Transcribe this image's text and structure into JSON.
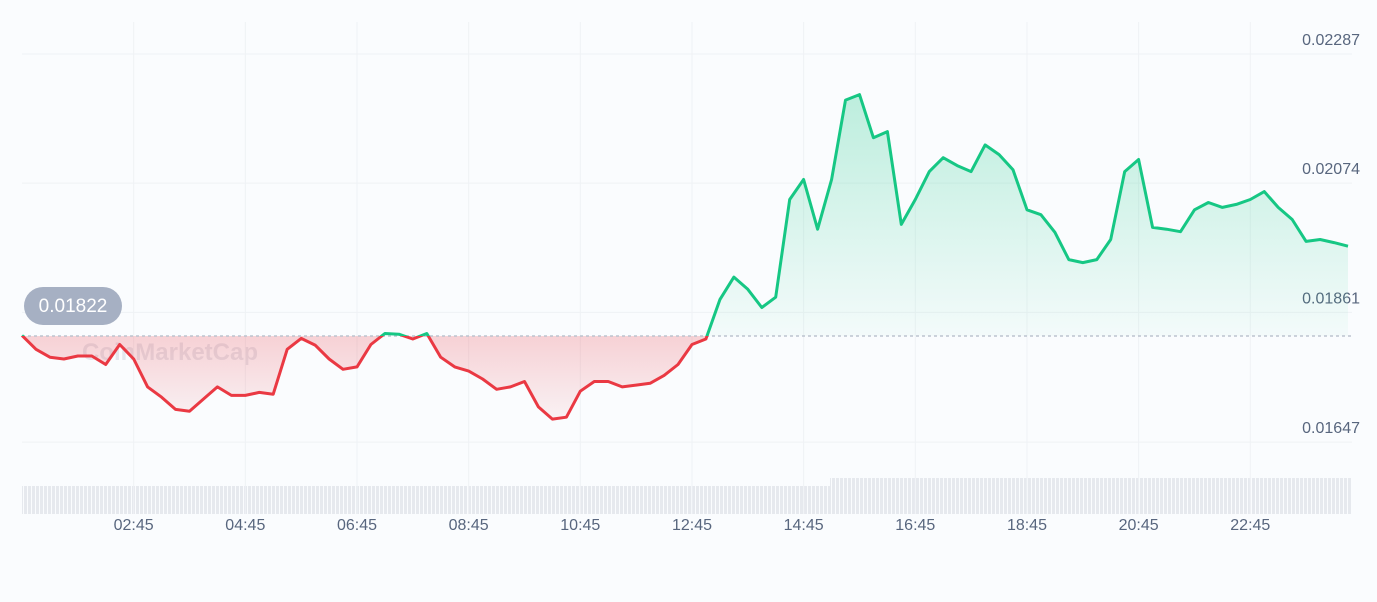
{
  "chart_data": {
    "type": "line",
    "watermark": "CoinMarketCap",
    "baseline": 0.01822,
    "color_up": "#16c784",
    "color_down": "#ea3943",
    "grid": true,
    "ylim": [
      0.01601,
      0.02343
    ],
    "yticks": [
      0.01647,
      0.01861,
      0.02074,
      0.02287
    ],
    "categories": [
      null,
      null,
      null,
      null,
      null,
      null,
      null,
      null,
      "02:45",
      null,
      null,
      null,
      null,
      null,
      null,
      null,
      "04:45",
      null,
      null,
      null,
      null,
      null,
      null,
      null,
      "06:45",
      null,
      null,
      null,
      null,
      null,
      null,
      null,
      "08:45",
      null,
      null,
      null,
      null,
      null,
      null,
      null,
      "10:45",
      null,
      null,
      null,
      null,
      null,
      null,
      null,
      "12:45",
      null,
      null,
      null,
      null,
      null,
      null,
      null,
      "14:45",
      null,
      null,
      null,
      null,
      null,
      null,
      null,
      "16:45",
      null,
      null,
      null,
      null,
      null,
      null,
      null,
      "18:45",
      null,
      null,
      null,
      null,
      null,
      null,
      null,
      "20:45",
      null,
      null,
      null,
      null,
      null,
      null,
      null,
      "22:45",
      null,
      null,
      null,
      null,
      null,
      null,
      null
    ],
    "values": [
      0.01823,
      0.018,
      0.01787,
      0.01784,
      0.01789,
      0.01789,
      0.01775,
      0.01808,
      0.01784,
      0.01738,
      0.01721,
      0.01701,
      0.01698,
      0.01718,
      0.01738,
      0.01724,
      0.01724,
      0.01729,
      0.01726,
      0.018,
      0.01818,
      0.01807,
      0.01784,
      0.01767,
      0.01771,
      0.01808,
      0.01826,
      0.01825,
      0.01817,
      0.01826,
      0.01787,
      0.01771,
      0.01764,
      0.01751,
      0.01734,
      0.01738,
      0.01747,
      0.01705,
      0.01685,
      0.01688,
      0.01731,
      0.01747,
      0.01747,
      0.01738,
      0.01741,
      0.01744,
      0.01757,
      0.01775,
      0.01808,
      0.01817,
      0.01882,
      0.01919,
      0.01899,
      0.01869,
      0.01886,
      0.02047,
      0.0208,
      0.01998,
      0.0208,
      0.02211,
      0.0222,
      0.02149,
      0.02159,
      0.02006,
      0.02047,
      0.02093,
      0.02116,
      0.02103,
      0.02093,
      0.02137,
      0.02121,
      0.02096,
      0.0203,
      0.02022,
      0.01993,
      0.01948,
      0.01943,
      0.01948,
      0.01981,
      0.02093,
      0.02113,
      0.02001,
      0.01998,
      0.01994,
      0.0203,
      0.02042,
      0.02034,
      0.02039,
      0.02047,
      0.0206,
      0.02034,
      0.02014,
      0.01978,
      0.01981,
      0.01976,
      0.0197
    ]
  }
}
